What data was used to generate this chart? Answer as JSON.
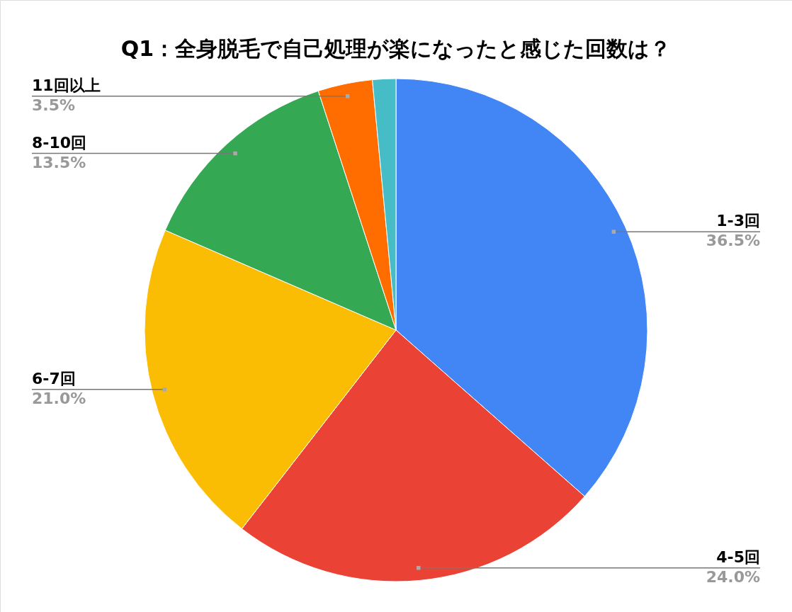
{
  "chart_data": {
    "type": "pie",
    "title": "Q1：全身脱毛で自己処理が楽になったと感じた回数は？",
    "categories": [
      "1-3回",
      "4-5回",
      "6-7回",
      "8-10回",
      "11回以上",
      null
    ],
    "values": [
      36.5,
      24.0,
      21.0,
      13.5,
      3.5,
      1.5
    ],
    "colors": [
      "#4285f4",
      "#ea4335",
      "#fbbc04",
      "#34a853",
      "#ff6d01",
      "#46bdc6"
    ],
    "value_labels": [
      "36.5%",
      "24.0%",
      "21.0%",
      "13.5%",
      "3.5%",
      null
    ]
  }
}
